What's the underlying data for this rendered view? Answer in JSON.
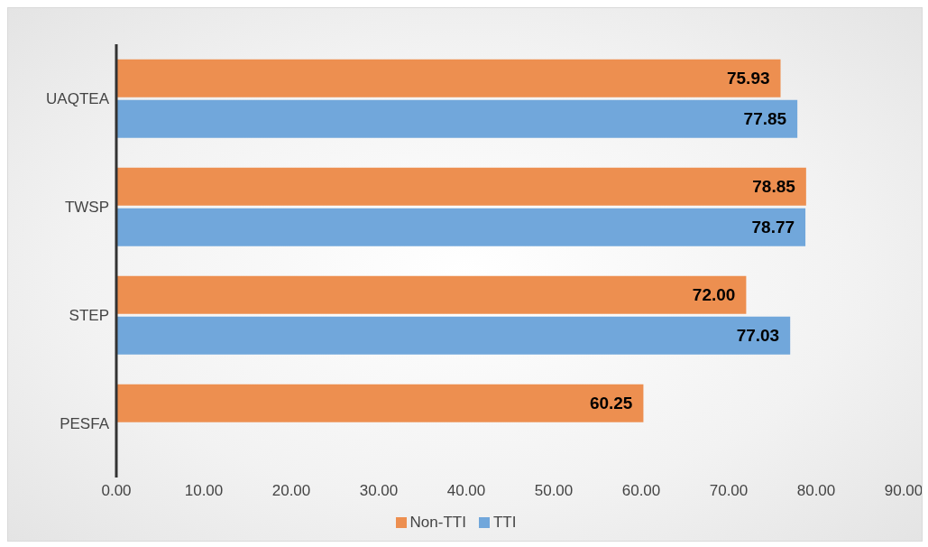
{
  "chart_data": {
    "type": "bar",
    "orientation": "horizontal",
    "categories": [
      "UAQTEA",
      "TWSP",
      "STEP",
      "PESFA"
    ],
    "series": [
      {
        "name": "Non-TTI",
        "color": "#ed8f50",
        "values": [
          75.93,
          78.85,
          72.0,
          60.25
        ],
        "value_labels": [
          "75.93",
          "78.85",
          "72.00",
          "60.25"
        ]
      },
      {
        "name": "TTI",
        "color": "#71a7db",
        "values": [
          77.85,
          78.77,
          77.03,
          null
        ],
        "value_labels": [
          "77.85",
          "78.77",
          "77.03",
          null
        ]
      }
    ],
    "xlim": [
      0,
      90
    ],
    "xticks": [
      {
        "value": 0,
        "label": "0.00"
      },
      {
        "value": 10,
        "label": "10.00"
      },
      {
        "value": 20,
        "label": "20.00"
      },
      {
        "value": 30,
        "label": "30.00"
      },
      {
        "value": 40,
        "label": "40.00"
      },
      {
        "value": 50,
        "label": "50.00"
      },
      {
        "value": 60,
        "label": "60.00"
      },
      {
        "value": 70,
        "label": "70.00"
      },
      {
        "value": 80,
        "label": "80.00"
      },
      {
        "value": 90,
        "label": "90.00"
      }
    ],
    "grid": false,
    "legend": "bottom"
  }
}
